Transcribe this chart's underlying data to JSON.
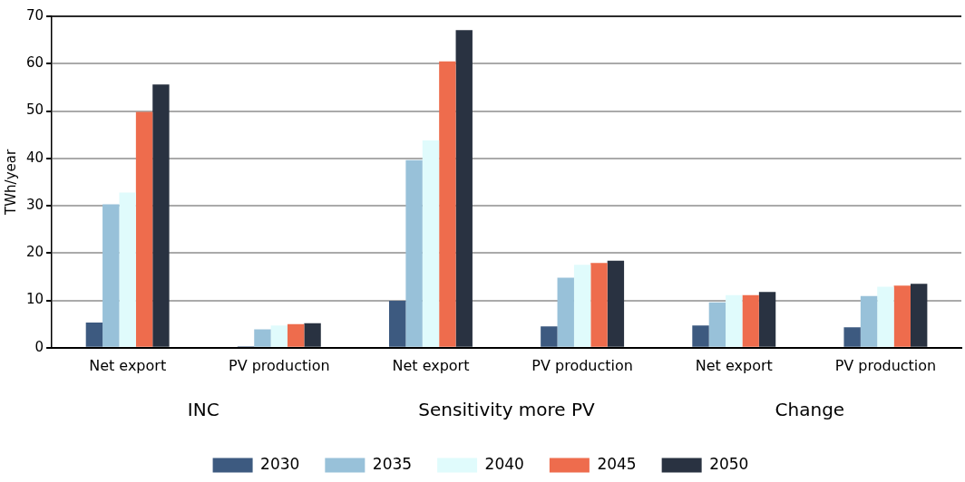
{
  "chart_data": {
    "type": "bar",
    "ylabel": "TWh/year",
    "categories": [
      "Net export",
      "PV production",
      "Net export",
      "PV production",
      "Net export",
      "PV production"
    ],
    "series": [
      {
        "name": "2030",
        "color": "#3d5a80",
        "values": [
          5.3,
          0.3,
          9.9,
          4.5,
          4.7,
          4.3
        ]
      },
      {
        "name": "2035",
        "color": "#98c1d9",
        "values": [
          30.3,
          3.9,
          39.6,
          14.8,
          9.6,
          10.9
        ]
      },
      {
        "name": "2040",
        "color": "#e0fbfc",
        "values": [
          32.8,
          4.7,
          43.8,
          17.5,
          11.1,
          12.9
        ]
      },
      {
        "name": "2045",
        "color": "#ee6c4d",
        "values": [
          49.8,
          5.0,
          60.5,
          17.9,
          11.1,
          13.1
        ]
      },
      {
        "name": "2050",
        "color": "#293241",
        "values": [
          55.6,
          5.2,
          67.1,
          18.4,
          11.8,
          13.5
        ]
      }
    ],
    "annotations": [
      "INC",
      "Sensitivity more PV",
      "Change"
    ],
    "ylim": [
      0,
      70
    ],
    "yticks": [
      0,
      10,
      20,
      30,
      40,
      50,
      60,
      70
    ],
    "grid": "y",
    "legend": "bottom"
  }
}
